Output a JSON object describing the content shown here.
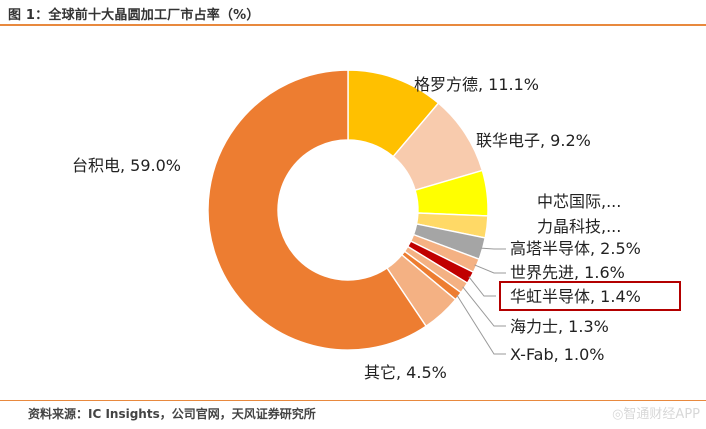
{
  "title": "图 1：全球前十大晶圆加工厂市占率（%）",
  "source": "资料来源：IC Insights，公司官网，天风证券研究所",
  "watermark": "◎智通财经APP",
  "chart_data": {
    "type": "pie",
    "donut": true,
    "highlighted_label": "华虹半导体, 1.4%",
    "slices": [
      {
        "name": "台积电",
        "value": 59.0,
        "label": "台积电, 59.0%",
        "color": "#ed7d31"
      },
      {
        "name": "格罗方德",
        "value": 11.1,
        "label": "格罗方德, 11.1%",
        "color": "#ffc000"
      },
      {
        "name": "联华电子",
        "value": 9.2,
        "label": "联华电子, 9.2%",
        "color": "#f8cbad"
      },
      {
        "name": "中芯国际",
        "value": 5.2,
        "label": "中芯国际,...",
        "color": "#ffff00"
      },
      {
        "name": "力晶科技",
        "value": 2.5,
        "label": "力晶科技,...",
        "color": "#ffd966"
      },
      {
        "name": "高塔半导体",
        "value": 2.5,
        "label": "高塔半导体, 2.5%",
        "color": "#a5a5a5"
      },
      {
        "name": "世界先进",
        "value": 1.6,
        "label": "世界先进, 1.6%",
        "color": "#f4b183"
      },
      {
        "name": "华虹半导体",
        "value": 1.4,
        "label": "华虹半导体, 1.4%",
        "color": "#c00000"
      },
      {
        "name": "海力士",
        "value": 1.3,
        "label": "海力士, 1.3%",
        "color": "#f4b183"
      },
      {
        "name": "X-Fab",
        "value": 1.0,
        "label": "X-Fab, 1.0%",
        "color": "#ed7d31"
      },
      {
        "name": "其它",
        "value": 4.5,
        "label": "其它, 4.5%",
        "color": "#f4b183"
      }
    ]
  }
}
